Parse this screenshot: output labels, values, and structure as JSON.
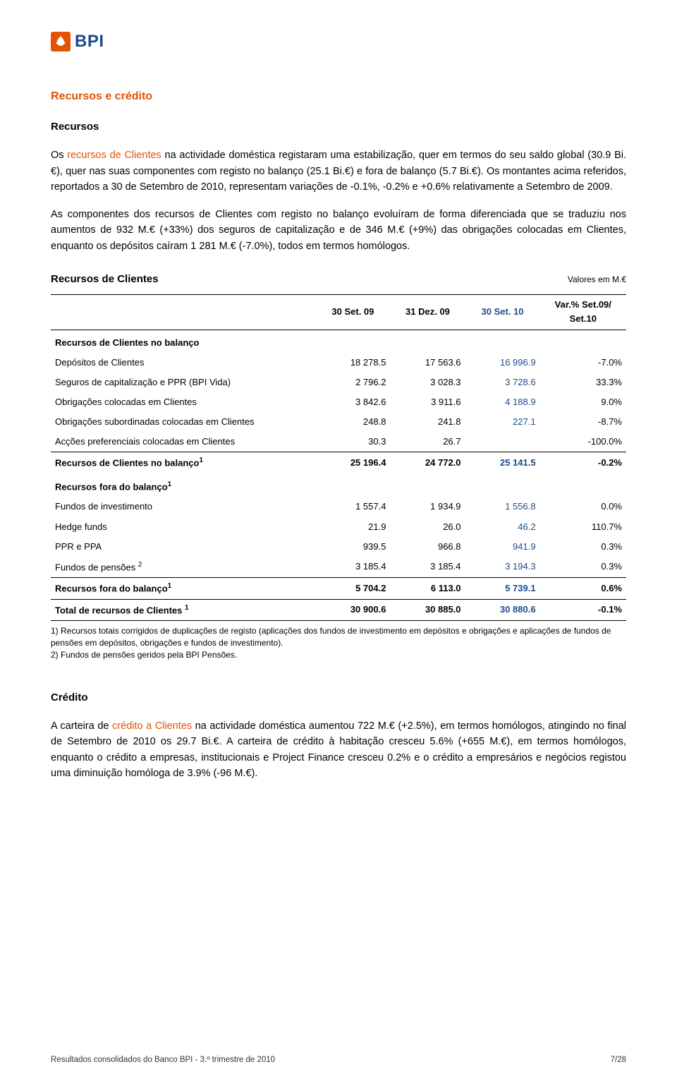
{
  "logo": {
    "text": "BPI",
    "mark_bg": "#e35205",
    "text_color": "#1a4b8c"
  },
  "colors": {
    "accent": "#e35205",
    "blue": "#1a4b8c",
    "text": "#000000",
    "bg": "#ffffff",
    "border": "#000000"
  },
  "section": {
    "title": "Recursos e crédito",
    "sub1": "Recursos",
    "p1a": "Os ",
    "p1_hl": "recursos de Clientes",
    "p1b": " na actividade doméstica registaram uma estabilização, quer em termos do seu saldo global (30.9 Bi.€), quer nas suas componentes com registo no balanço (25.1 Bi.€) e fora de balanço (5.7 Bi.€). Os montantes acima referidos, reportados a 30 de Setembro de 2010, representam variações de -0.1%, -0.2% e +0.6% relativamente a Setembro de 2009.",
    "p2": "As componentes dos recursos de Clientes com registo no balanço evoluíram de forma diferenciada que se traduziu nos aumentos de 932 M.€ (+33%) dos seguros de capitalização e de 346 M.€ (+9%) das obrigações colocadas em Clientes, enquanto os depósitos caíram 1 281 M.€ (-7.0%), todos em termos homólogos."
  },
  "table": {
    "title": "Recursos de Clientes",
    "unit": "Valores em M.€",
    "headers": {
      "c1": "30 Set. 09",
      "c2": "31 Dez. 09",
      "c3": "30 Set. 10",
      "c4_l1": "Var.% Set.09/",
      "c4_l2": "Set.10"
    },
    "rows": [
      {
        "type": "section",
        "label": "Recursos de Clientes no balanço"
      },
      {
        "type": "data",
        "label": "Depósitos de Clientes",
        "c1": "18 278.5",
        "c2": "17 563.6",
        "c3": "16 996.9",
        "c4": "-7.0%"
      },
      {
        "type": "data",
        "label": "Seguros de capitalização e PPR (BPI Vida)",
        "c1": "2 796.2",
        "c2": "3 028.3",
        "c3": "3 728.6",
        "c4": "33.3%"
      },
      {
        "type": "data",
        "label": "Obrigações colocadas em Clientes",
        "c1": "3 842.6",
        "c2": "3 911.6",
        "c3": "4 188.9",
        "c4": "9.0%"
      },
      {
        "type": "data",
        "label": "Obrigações subordinadas colocadas em Clientes",
        "c1": "248.8",
        "c2": "241.8",
        "c3": "227.1",
        "c4": "-8.7%"
      },
      {
        "type": "data",
        "label": "Acções preferenciais colocadas em Clientes",
        "c1": "30.3",
        "c2": "26.7",
        "c3": "",
        "c4": "-100.0%",
        "border_bottom": true
      },
      {
        "type": "subtotal",
        "label": "Recursos de Clientes no balanço",
        "sup": "1",
        "c1": "25 196.4",
        "c2": "24 772.0",
        "c3": "25 141.5",
        "c4": "-0.2%"
      },
      {
        "type": "section",
        "label": "Recursos fora do balanço",
        "sup": "1"
      },
      {
        "type": "data",
        "label": "Fundos de investimento",
        "c1": "1 557.4",
        "c2": "1 934.9",
        "c3": "1 556.8",
        "c4": "0.0%"
      },
      {
        "type": "data",
        "label": "Hedge funds",
        "c1": "21.9",
        "c2": "26.0",
        "c3": "46.2",
        "c4": "110.7%"
      },
      {
        "type": "data",
        "label": "PPR e PPA",
        "c1": "939.5",
        "c2": "966.8",
        "c3": "941.9",
        "c4": "0.3%"
      },
      {
        "type": "data",
        "label": "Fundos de pensões ",
        "sup": "2",
        "c1": "3 185.4",
        "c2": "3 185.4",
        "c3": "3 194.3",
        "c4": "0.3%",
        "border_bottom": true
      },
      {
        "type": "subtotal",
        "label": "Recursos fora do balanço",
        "sup": "1",
        "c1": "5 704.2",
        "c2": "6 113.0",
        "c3": "5 739.1",
        "c4": "0.6%",
        "border_bottom": true
      },
      {
        "type": "total",
        "label": "Total de recursos de Clientes ",
        "sup": "1",
        "c1": "30 900.6",
        "c2": "30 885.0",
        "c3": "30 880.6",
        "c4": "-0.1%",
        "border_bottom": true
      }
    ],
    "footnotes": {
      "n1": "1) Recursos totais corrigidos de duplicações de registo (aplicações dos fundos de investimento em depósitos e obrigações e aplicações de fundos de pensões em depósitos, obrigações e fundos de investimento).",
      "n2": "2) Fundos de pensões geridos pela BPI Pensões."
    },
    "col_widths": [
      "46%",
      "13%",
      "13%",
      "13%",
      "15%"
    ]
  },
  "credito": {
    "title": "Crédito",
    "p_a": "A carteira de ",
    "p_hl": "crédito a Clientes",
    "p_b": " na actividade doméstica aumentou 722 M.€ (+2.5%), em termos homólogos, atingindo no final de Setembro de 2010 os 29.7 Bi.€. A carteira de crédito à habitação cresceu 5.6% (+655 M.€), em termos homólogos, enquanto o crédito a empresas, institucionais e Project Finance cresceu 0.2% e o crédito a empresários e negócios registou uma diminuição homóloga de 3.9% (-96 M.€)."
  },
  "footer": {
    "left": "Resultados consolidados do Banco BPI - 3.º trimestre de 2010",
    "right": "7/28"
  }
}
